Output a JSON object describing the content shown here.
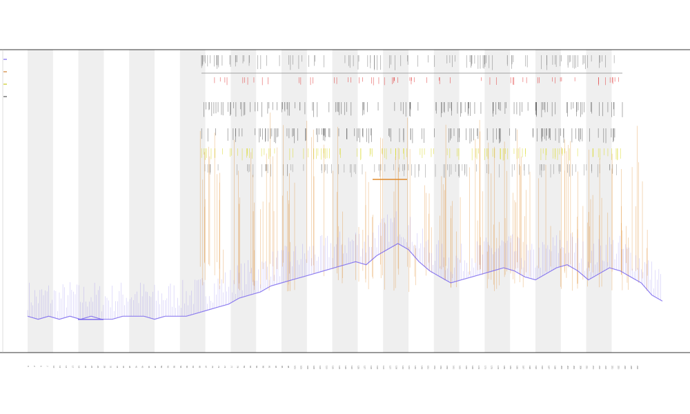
{
  "chart_data": {
    "type": "line",
    "title": "",
    "subtitle_1": "",
    "subtitle_2": "",
    "xlabel": "",
    "ylabel": "",
    "legend_placement": "left",
    "legend": [
      {
        "name": "",
        "color": "#7b68ee"
      },
      {
        "name": "",
        "color": "#d08030"
      },
      {
        "name": "",
        "color": "#c8c820"
      },
      {
        "name": "",
        "color": "#555555"
      }
    ],
    "grid": false,
    "shaded_bands": true,
    "colors": {
      "line": "#7b68ee",
      "spikes": "#e08a2a",
      "yellow_track": "#d8d820",
      "red_track": "#e03030",
      "gray_track": "#555555",
      "band": "#efefef"
    },
    "track_labels": [
      "",
      ""
    ],
    "ylim": [
      0,
      100
    ],
    "xlim": [
      0,
      240
    ],
    "series": [
      {
        "name": "",
        "x": [
          0,
          4,
          8,
          12,
          16,
          20,
          24,
          28,
          32,
          36,
          40,
          44,
          48,
          52,
          56,
          60,
          64,
          68,
          72,
          76,
          80,
          84,
          88,
          92,
          96,
          100,
          104,
          108,
          112,
          116,
          120,
          124,
          128,
          132,
          136,
          140,
          144,
          148,
          152,
          156,
          160,
          164,
          168,
          172,
          176,
          180,
          184,
          188,
          192,
          196,
          200,
          204,
          208,
          212,
          216,
          220,
          224,
          228,
          232,
          236,
          240
        ],
        "y": [
          12,
          11,
          12,
          11,
          12,
          11,
          12,
          11,
          11,
          12,
          12,
          12,
          11,
          12,
          12,
          12,
          13,
          14,
          15,
          16,
          18,
          19,
          20,
          22,
          23,
          24,
          25,
          26,
          27,
          28,
          29,
          30,
          29,
          32,
          34,
          36,
          34,
          30,
          27,
          25,
          23,
          24,
          25,
          26,
          27,
          28,
          27,
          25,
          24,
          26,
          28,
          29,
          27,
          24,
          26,
          28,
          27,
          25,
          23,
          19,
          17
        ]
      }
    ]
  }
}
